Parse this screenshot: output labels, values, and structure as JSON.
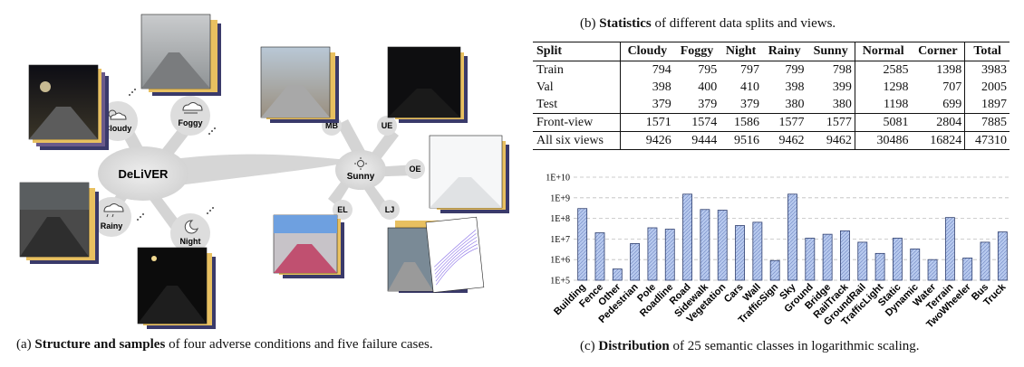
{
  "captions": {
    "a": {
      "bold": "Structure and samples",
      "prefix": "(a) ",
      "rest": " of four adverse conditions and five failure cases."
    },
    "b": {
      "bold": "Statistics",
      "prefix": "(b) ",
      "rest": " of different data splits and views."
    },
    "c": {
      "bold": "Distribution",
      "prefix": "(c) ",
      "rest": " of 25 semantic classes in logarithmic scaling."
    }
  },
  "diagram": {
    "center": "DeLiVER",
    "conditions": [
      "Cloudy",
      "Foggy",
      "Rainy",
      "Night"
    ],
    "sunny": "Sunny",
    "failures": [
      "MB",
      "UE",
      "OE",
      "EL",
      "LJ"
    ],
    "icons": [
      "cloud-sun-icon",
      "cloud-fog-icon",
      "cloud-rain-icon",
      "moon-icon",
      "sun-icon"
    ]
  },
  "table": {
    "headers": [
      "Split",
      "Cloudy",
      "Foggy",
      "Night",
      "Rainy",
      "Sunny",
      "Normal",
      "Corner",
      "Total"
    ],
    "rows": [
      [
        "Train",
        "794",
        "795",
        "797",
        "799",
        "798",
        "2585",
        "1398",
        "3983"
      ],
      [
        "Val",
        "398",
        "400",
        "410",
        "398",
        "399",
        "1298",
        "707",
        "2005"
      ],
      [
        "Test",
        "379",
        "379",
        "379",
        "380",
        "380",
        "1198",
        "699",
        "1897"
      ],
      [
        "Front-view",
        "1571",
        "1574",
        "1586",
        "1577",
        "1577",
        "5081",
        "2804",
        "7885"
      ],
      [
        "All six views",
        "9426",
        "9444",
        "9516",
        "9462",
        "9462",
        "30486",
        "16824",
        "47310"
      ]
    ]
  },
  "chart_data": {
    "type": "bar",
    "yscale": "log",
    "ylim": [
      100000,
      10000000000
    ],
    "ytick_labels": [
      "1E+5",
      "1E+6",
      "1E+7",
      "1E+8",
      "1E+9",
      "1E+10"
    ],
    "grid": "horizontal-dashed",
    "bar_color": "#b7c9ee",
    "categories": [
      "Building",
      "Fence",
      "Other",
      "Pedestrian",
      "Pole",
      "Roadline",
      "Road",
      "Sidewalk",
      "Vegetation",
      "Cars",
      "Wall",
      "TrafficSign",
      "Sky",
      "Ground",
      "Bridge",
      "RailTrack",
      "GroundRail",
      "TrafficLight",
      "Static",
      "Dynamic",
      "Water",
      "Terrain",
      "TwoWheeler",
      "Bus",
      "Truck"
    ],
    "values": [
      300000000,
      20000000,
      350000,
      6000000,
      35000000,
      30000000,
      1500000000,
      270000000,
      250000000,
      45000000,
      65000000,
      900000,
      1500000000,
      11000000,
      17000000,
      25000000,
      7000000,
      2000000,
      11000000,
      3300000,
      1000000,
      110000000,
      1200000,
      7000000,
      22000000
    ]
  }
}
